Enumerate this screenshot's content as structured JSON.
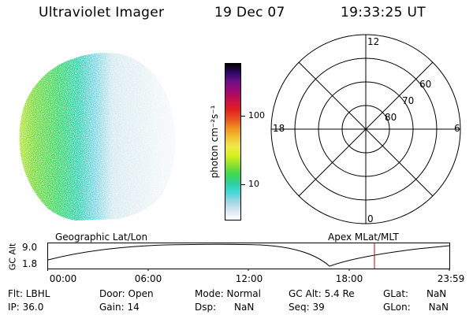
{
  "header": {
    "instrument": "Ultraviolet Imager",
    "date": "19 Dec 07",
    "time": "19:33:25 UT"
  },
  "colorbar": {
    "label": "photon cm⁻²s⁻¹",
    "ticks": [
      "100",
      "10"
    ],
    "colors": [
      "#ffffff",
      "#d8e6ee",
      "#9fd6e4",
      "#3fd8d8",
      "#2ecf9a",
      "#3fd84f",
      "#8ee22f",
      "#d8f01f",
      "#f0e84a",
      "#f4c030",
      "#f09020",
      "#e85020",
      "#e02020",
      "#c81048",
      "#a00870",
      "#701088",
      "#30086a",
      "#000000"
    ]
  },
  "polar": {
    "top_label": "12",
    "bottom_label": "0",
    "left_label": "18",
    "right_label": "6",
    "ring_labels": [
      "60",
      "70",
      "80"
    ]
  },
  "orbit": {
    "left_title": "Geographic Lat/Lon",
    "right_title": "Apex MLat/MLT",
    "y_title": "GC Alt",
    "y_ticks": [
      "9.0",
      "1.8"
    ],
    "x_ticks": [
      "00:00",
      "06:00",
      "12:00",
      "18:00",
      "23:59"
    ],
    "marker_color": "#cc0000"
  },
  "status": {
    "filter": "Flt: LBHL",
    "ip": "IP: 36.0",
    "door": "Door: Open",
    "gain": "Gain: 14",
    "mode": "Mode: Normal",
    "dsp": "Dsp:      NaN",
    "gc_alt": "GC Alt: 5.4 Re",
    "seq": "Seq: 39",
    "glat": "GLat:      NaN",
    "glon": "GLon:      NaN"
  }
}
